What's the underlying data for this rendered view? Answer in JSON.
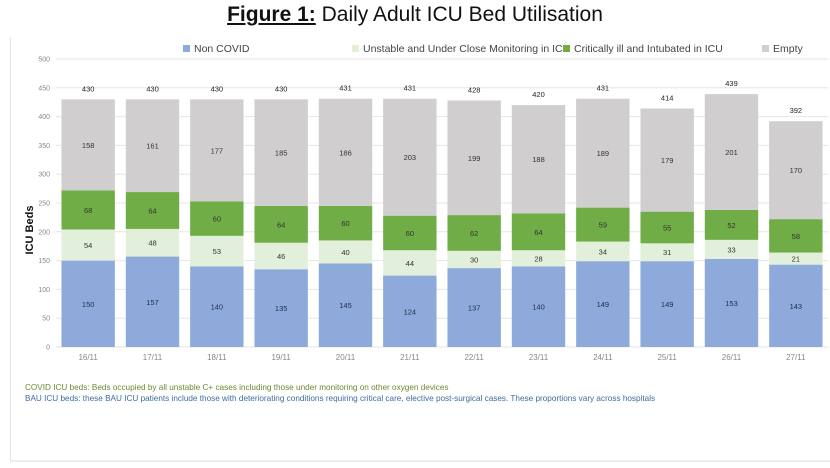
{
  "figure": {
    "title_prefix": "Figure 1:",
    "title_rest": " Daily Adult ICU Bed Utilisation"
  },
  "notes": {
    "covid": "COVID ICU beds: Beds occupied by all unstable C+ cases including those under monitoring on other oxygen devices",
    "bau": "BAU ICU beds: these BAU ICU patients include those with deteriorating conditions requiring critical care, elective post-surgical cases. These proportions vary across hospitals"
  },
  "chart_data": {
    "type": "bar",
    "stacked": true,
    "title": "Figure 1: Daily Adult ICU Bed Utilisation",
    "xlabel": "",
    "ylabel": "ICU Beds",
    "ylim": [
      0,
      500
    ],
    "yticks": [
      0,
      50,
      100,
      150,
      200,
      250,
      300,
      350,
      400,
      450,
      500
    ],
    "grid": true,
    "legend_position": "top",
    "categories": [
      "16/11",
      "17/11",
      "18/11",
      "19/11",
      "20/11",
      "21/11",
      "22/11",
      "23/11",
      "24/11",
      "25/11",
      "26/11",
      "27/11"
    ],
    "series": [
      {
        "name": "Non COVID",
        "color": "#8eaadb",
        "values": [
          150,
          157,
          140,
          135,
          145,
          124,
          137,
          140,
          149,
          149,
          153,
          143
        ]
      },
      {
        "name": "Unstable and Under Close Monitoring in ICU",
        "color": "#e2efda",
        "values": [
          54,
          48,
          53,
          46,
          40,
          44,
          30,
          28,
          34,
          31,
          33,
          21
        ]
      },
      {
        "name": "Critically ill and Intubated in ICU",
        "color": "#70ad47",
        "values": [
          68,
          64,
          60,
          64,
          60,
          60,
          62,
          64,
          59,
          55,
          52,
          58
        ]
      },
      {
        "name": "Empty",
        "color": "#d0cece",
        "values": [
          158,
          161,
          177,
          185,
          186,
          203,
          199,
          188,
          189,
          179,
          201,
          170
        ]
      }
    ],
    "totals": [
      430,
      430,
      430,
      430,
      431,
      431,
      428,
      420,
      431,
      414,
      439,
      392
    ]
  }
}
